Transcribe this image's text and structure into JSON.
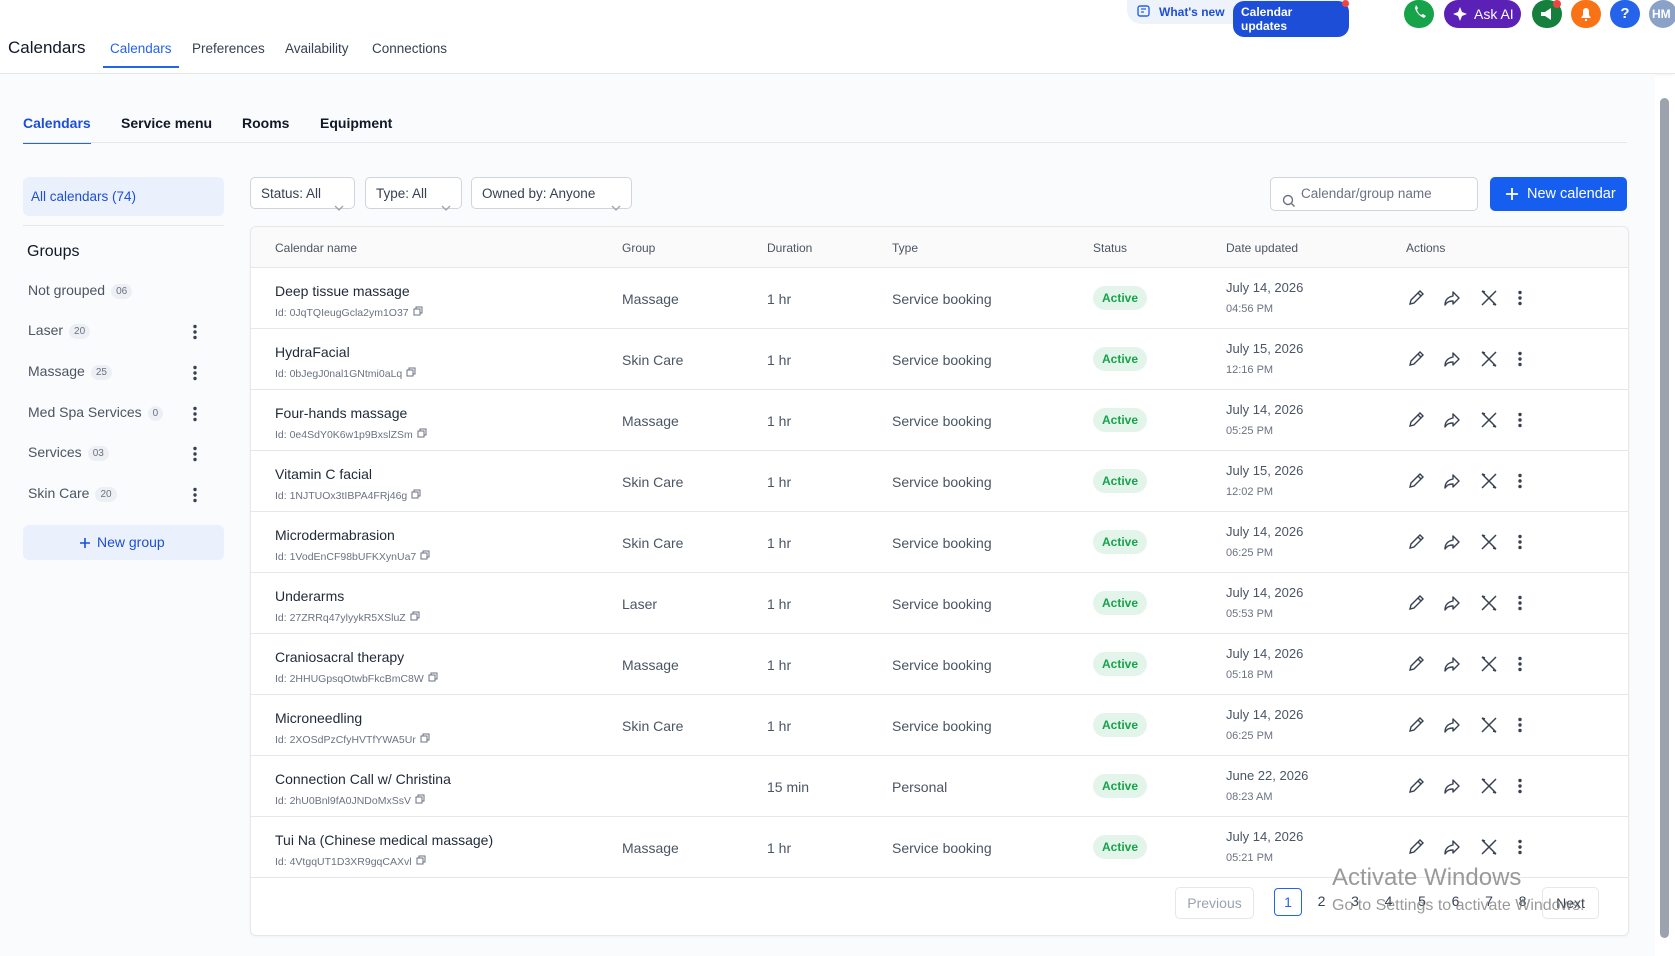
{
  "header": {
    "title": "Calendars",
    "tabs": [
      "Calendars",
      "Preferences",
      "Availability",
      "Connections"
    ],
    "whats_new": "What's new",
    "calendar_updates": "Calendar updates",
    "ask_ai": "Ask AI",
    "help": "?",
    "avatar": "HM"
  },
  "subtabs": [
    "Calendars",
    "Service menu",
    "Rooms",
    "Equipment"
  ],
  "sidebar": {
    "all_calendars": "All calendars (74)",
    "groups_title": "Groups",
    "groups": [
      {
        "name": "Not grouped",
        "count": "06"
      },
      {
        "name": "Laser",
        "count": "20"
      },
      {
        "name": "Massage",
        "count": "25"
      },
      {
        "name": "Med Spa Services",
        "count": "0"
      },
      {
        "name": "Services",
        "count": "03"
      },
      {
        "name": "Skin Care",
        "count": "20"
      }
    ],
    "new_group": "New group"
  },
  "filters": [
    "Status: All",
    "Type: All",
    "Owned by: Anyone"
  ],
  "search_placeholder": "Calendar/group name",
  "new_calendar": "New calendar",
  "table": {
    "columns": [
      "Calendar name",
      "Group",
      "Duration",
      "Type",
      "Status",
      "Date updated",
      "Actions"
    ],
    "rows": [
      {
        "name": "Deep tissue massage",
        "id": "Id: 0JqTQIeugGcla2ym1O37",
        "group": "Massage",
        "duration": "1 hr",
        "type": "Service booking",
        "status": "Active",
        "date": "July 14, 2026",
        "time": "04:56 PM"
      },
      {
        "name": "HydraFacial",
        "id": "Id: 0bJegJ0nal1GNtmi0aLq",
        "group": "Skin Care",
        "duration": "1 hr",
        "type": "Service booking",
        "status": "Active",
        "date": "July 15, 2026",
        "time": "12:16 PM"
      },
      {
        "name": "Four-hands massage",
        "id": "Id: 0e4SdY0K6w1p9BxslZSm",
        "group": "Massage",
        "duration": "1 hr",
        "type": "Service booking",
        "status": "Active",
        "date": "July 14, 2026",
        "time": "05:25 PM"
      },
      {
        "name": "Vitamin C facial",
        "id": "Id: 1NJTUOx3tIBPA4FRj46g",
        "group": "Skin Care",
        "duration": "1 hr",
        "type": "Service booking",
        "status": "Active",
        "date": "July 15, 2026",
        "time": "12:02 PM"
      },
      {
        "name": "Microdermabrasion",
        "id": "Id: 1VodEnCF98bUFKXynUa7",
        "group": "Skin Care",
        "duration": "1 hr",
        "type": "Service booking",
        "status": "Active",
        "date": "July 14, 2026",
        "time": "06:25 PM"
      },
      {
        "name": "Underarms",
        "id": "Id: 27ZRRq47ylyykR5XSluZ",
        "group": "Laser",
        "duration": "1 hr",
        "type": "Service booking",
        "status": "Active",
        "date": "July 14, 2026",
        "time": "05:53 PM"
      },
      {
        "name": "Craniosacral therapy",
        "id": "Id: 2HHUGpsqOtwbFkcBmC8W",
        "group": "Massage",
        "duration": "1 hr",
        "type": "Service booking",
        "status": "Active",
        "date": "July 14, 2026",
        "time": "05:18 PM"
      },
      {
        "name": "Microneedling",
        "id": "Id: 2XOSdPzCfyHVTfYWA5Ur",
        "group": "Skin Care",
        "duration": "1 hr",
        "type": "Service booking",
        "status": "Active",
        "date": "July 14, 2026",
        "time": "06:25 PM"
      },
      {
        "name": "Connection Call w/ Christina",
        "id": "Id: 2hU0Bnl9fA0JNDoMxSsV",
        "group": "",
        "duration": "15 min",
        "type": "Personal",
        "status": "Active",
        "date": "June 22, 2026",
        "time": "08:23 AM"
      },
      {
        "name": "Tui Na (Chinese medical massage)",
        "id": "Id: 4VtgqUT1D3XR9gqCAXvl",
        "group": "Massage",
        "duration": "1 hr",
        "type": "Service booking",
        "status": "Active",
        "date": "July 14, 2026",
        "time": "05:21 PM"
      }
    ]
  },
  "pagination": {
    "previous": "Previous",
    "pages": [
      "1",
      "2",
      "3",
      "4",
      "5",
      "6",
      "7",
      "8"
    ],
    "next": "Next"
  },
  "watermark": {
    "title": "Activate Windows",
    "subtitle": "Go to Settings to activate Windows."
  }
}
